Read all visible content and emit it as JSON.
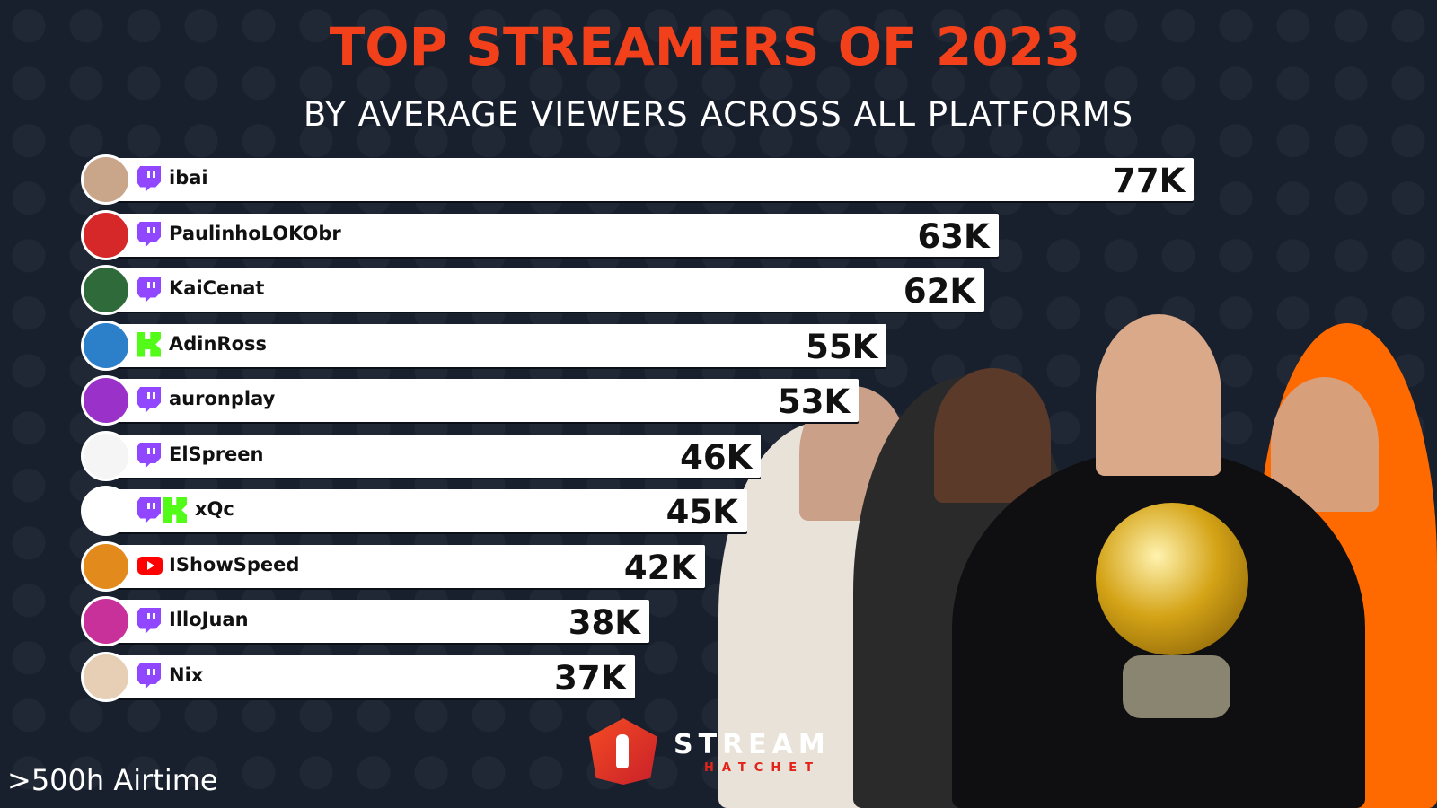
{
  "chart_data": {
    "type": "bar",
    "orientation": "horizontal",
    "title": "TOP STREAMERS OF 2023",
    "subtitle": "BY AVERAGE VIEWERS ACROSS ALL PLATFORMS",
    "categories": [
      "ibai",
      "PaulinhoLOKObr",
      "KaiCenat",
      "AdinRoss",
      "auronplay",
      "ElSpreen",
      "xQc",
      "IShowSpeed",
      "IlloJuan",
      "Nix"
    ],
    "values": [
      77,
      63,
      62,
      55,
      53,
      46,
      45,
      42,
      38,
      37
    ],
    "value_labels": [
      "77K",
      "63K",
      "62K",
      "55K",
      "53K",
      "46K",
      "45K",
      "42K",
      "38K",
      "37K"
    ],
    "platforms": [
      [
        "twitch"
      ],
      [
        "twitch"
      ],
      [
        "twitch"
      ],
      [
        "kick"
      ],
      [
        "twitch"
      ],
      [
        "twitch"
      ],
      [
        "twitch",
        "kick"
      ],
      [
        "youtube"
      ],
      [
        "twitch"
      ],
      [
        "twitch"
      ]
    ],
    "unit": "thousand average viewers",
    "footnote": ">500h Airtime"
  },
  "brand": {
    "name": "STREAM",
    "sub": "HATCHET"
  },
  "colors": {
    "title": "#f2401b",
    "background": "#18202e",
    "twitch": "#9146ff",
    "kick": "#53fc18",
    "youtube": "#ff0000"
  },
  "avatar_colors": [
    "#c9a58a",
    "#d62828",
    "#2f6b3a",
    "#2c7fc9",
    "#9a32c9",
    "#f5f5f5",
    "#ffffff",
    "#e28a1c",
    "#c8309a",
    "#e7cfb5"
  ]
}
